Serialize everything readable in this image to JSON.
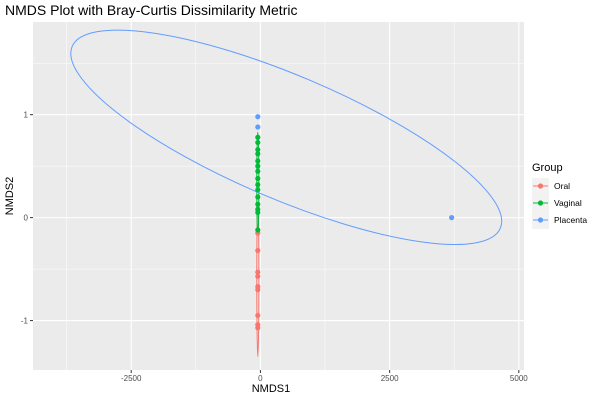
{
  "chart_data": {
    "type": "scatter",
    "title": "NMDS Plot with Bray-Curtis Dissimilarity Metric",
    "xlabel": "NMDS1",
    "ylabel": "NMDS2",
    "xlim": [
      -4400,
      5100
    ],
    "ylim": [
      -1.48,
      1.9
    ],
    "x_ticks": [
      -2500,
      0,
      2500,
      5000
    ],
    "x_tick_labels": [
      "-2500",
      "0",
      "2500",
      "5000"
    ],
    "y_ticks": [
      -1,
      0,
      1
    ],
    "y_tick_labels": [
      "-1",
      "0",
      "1"
    ],
    "grid": true,
    "legend": {
      "title": "Group",
      "placement": "right",
      "entries": [
        "Oral",
        "Vaginal",
        "Placenta"
      ]
    },
    "series": [
      {
        "name": "Oral",
        "color": "#F8766D",
        "points": [
          {
            "x": -50,
            "y": -0.15
          },
          {
            "x": -50,
            "y": -0.32
          },
          {
            "x": -50,
            "y": -0.53
          },
          {
            "x": -50,
            "y": -0.57
          },
          {
            "x": -50,
            "y": -0.67
          },
          {
            "x": -50,
            "y": -0.7
          },
          {
            "x": -50,
            "y": -0.95
          },
          {
            "x": -50,
            "y": -1.04
          },
          {
            "x": -50,
            "y": -1.07
          }
        ],
        "ellipse": {
          "cx": -50,
          "cy": -0.6,
          "rx": 20,
          "ry": 0.75
        }
      },
      {
        "name": "Vaginal",
        "color": "#00BA38",
        "points": [
          {
            "x": -50,
            "y": 0.78
          },
          {
            "x": -50,
            "y": 0.73
          },
          {
            "x": -50,
            "y": 0.66
          },
          {
            "x": -50,
            "y": 0.62
          },
          {
            "x": -50,
            "y": 0.55
          },
          {
            "x": -50,
            "y": 0.5
          },
          {
            "x": -50,
            "y": 0.45
          },
          {
            "x": -50,
            "y": 0.38
          },
          {
            "x": -50,
            "y": 0.32
          },
          {
            "x": -50,
            "y": 0.27
          },
          {
            "x": -50,
            "y": 0.2
          },
          {
            "x": -50,
            "y": 0.13
          },
          {
            "x": -50,
            "y": 0.08
          },
          {
            "x": -50,
            "y": 0.05
          },
          {
            "x": -50,
            "y": -0.12
          }
        ],
        "ellipse": {
          "cx": -50,
          "cy": 0.33,
          "rx": 20,
          "ry": 0.5
        }
      },
      {
        "name": "Placenta",
        "color": "#619CFF",
        "points": [
          {
            "x": -50,
            "y": 0.98
          },
          {
            "x": -50,
            "y": 0.88
          },
          {
            "x": 3700,
            "y": 0.0
          }
        ],
        "ellipse": {
          "cx": 500,
          "cy": 0.78,
          "rx": 4500,
          "ry": 0.6,
          "rotate_deg": 23
        }
      }
    ]
  }
}
